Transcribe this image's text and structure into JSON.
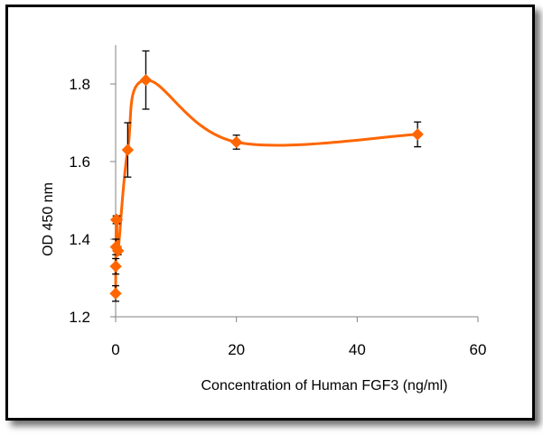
{
  "chart_data": {
    "type": "scatter",
    "title": "",
    "xlabel": "Concentration of Human FGF3 (ng/ml)",
    "ylabel": "OD 450 nm",
    "xlim": [
      0,
      60
    ],
    "ylim": [
      1.2,
      1.9
    ],
    "xticks": [
      "0",
      "20",
      "40",
      "60"
    ],
    "yticks": [
      "1.2",
      "1.4",
      "1.6",
      "1.8"
    ],
    "grid": false,
    "legend": "none",
    "line": "smooth",
    "color": "#ff6600",
    "errorbar_color": "#000000",
    "series": [
      {
        "x": [
          0.0,
          0.02,
          0.05,
          0.1,
          0.2,
          0.4,
          2,
          5,
          20,
          50
        ],
        "y": [
          1.26,
          1.33,
          1.38,
          1.45,
          1.45,
          1.37,
          1.63,
          1.81,
          1.65,
          1.67
        ],
        "err": [
          0.02,
          0.02,
          0.02,
          0.01,
          0.01,
          0.01,
          0.07,
          0.075,
          0.018,
          0.032
        ]
      }
    ]
  }
}
